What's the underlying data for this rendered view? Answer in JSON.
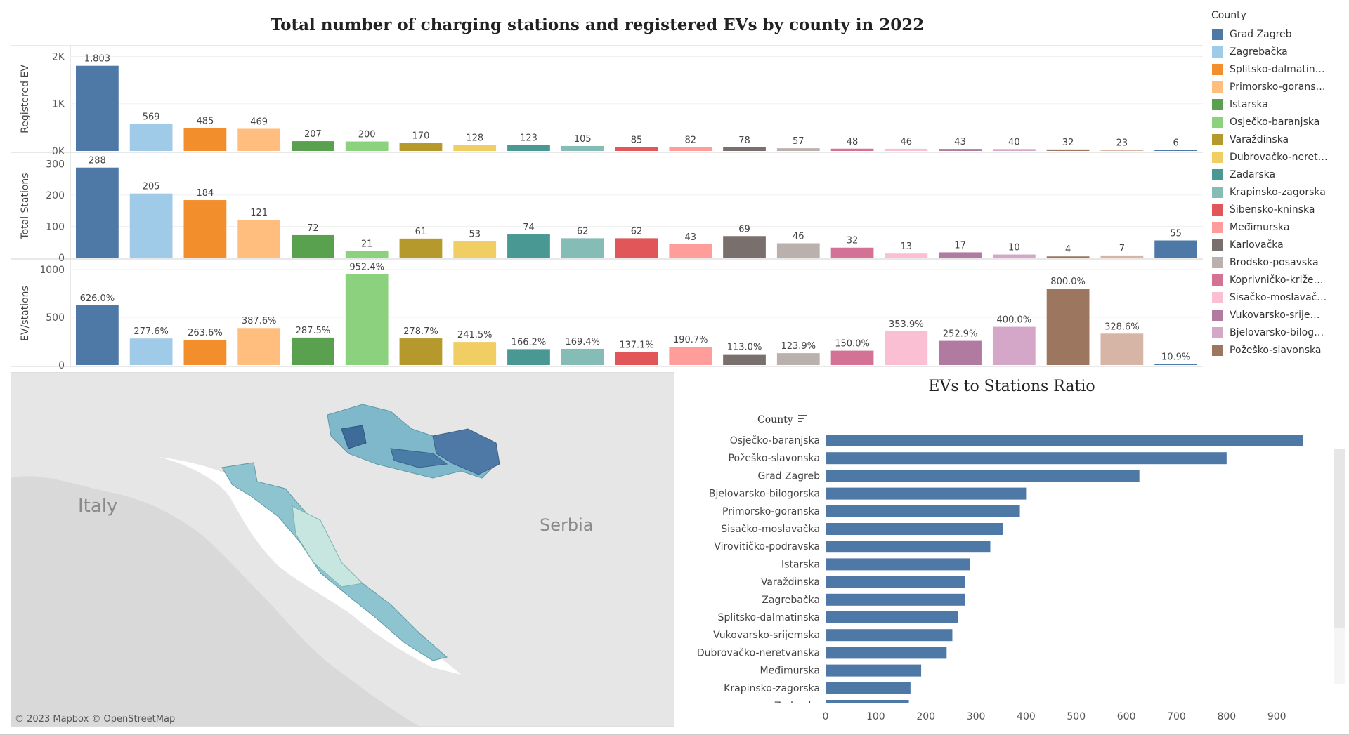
{
  "dashboard": {
    "title": "Total number of charging stations and registered EVs by county in 2022"
  },
  "legend": {
    "title": "County",
    "items": [
      {
        "label": "Grad Zagreb",
        "color": "#4e79a7"
      },
      {
        "label": "Zagrebačka",
        "color": "#a0cbe8"
      },
      {
        "label": "Splitsko-dalmatin…",
        "color": "#f28e2b"
      },
      {
        "label": "Primorsko-gorans…",
        "color": "#ffbe7d"
      },
      {
        "label": "Istarska",
        "color": "#59a14f"
      },
      {
        "label": "Osječko-baranjska",
        "color": "#8cd17d"
      },
      {
        "label": "Varaždinska",
        "color": "#b6992d"
      },
      {
        "label": "Dubrovačko-neret…",
        "color": "#f1ce63"
      },
      {
        "label": "Zadarska",
        "color": "#499894"
      },
      {
        "label": "Krapinsko-zagorska",
        "color": "#86bcb6"
      },
      {
        "label": "Šibensko-kninska",
        "color": "#e15759"
      },
      {
        "label": "Međimurska",
        "color": "#ff9d9a"
      },
      {
        "label": "Karlovačka",
        "color": "#79706e"
      },
      {
        "label": "Brodsko-posavska",
        "color": "#bab0ac"
      },
      {
        "label": "Koprivničko-križe…",
        "color": "#d37295"
      },
      {
        "label": "Sisačko-moslavač…",
        "color": "#fabfd2"
      },
      {
        "label": "Vukovarsko-srije…",
        "color": "#b07aa1"
      },
      {
        "label": "Bjelovarsko-bilog…",
        "color": "#d4a6c8"
      },
      {
        "label": "Požeško-slavonska",
        "color": "#9d7660"
      }
    ]
  },
  "map": {
    "country_labels": [
      "Italy",
      "Serbia"
    ],
    "attribution": "© 2023 Mapbox  © OpenStreetMap"
  },
  "chart_data": [
    {
      "type": "bar",
      "ylabel": "Registered EV",
      "yticks": [
        "2K",
        "1K",
        "0K"
      ],
      "ylim": [
        0,
        2200
      ],
      "bar_colors": [
        "#4e79a7",
        "#a0cbe8",
        "#f28e2b",
        "#ffbe7d",
        "#59a14f",
        "#8cd17d",
        "#b6992d",
        "#f1ce63",
        "#499894",
        "#86bcb6",
        "#e15759",
        "#ff9d9a",
        "#79706e",
        "#bab0ac",
        "#d37295",
        "#fabfd2",
        "#b07aa1",
        "#d4a6c8",
        "#9d7660",
        "#d7b5a6",
        "#4e79a7"
      ],
      "values": [
        1803,
        569,
        485,
        469,
        207,
        200,
        170,
        128,
        123,
        105,
        85,
        82,
        78,
        57,
        48,
        46,
        43,
        40,
        32,
        23,
        6
      ],
      "labels": [
        "1,803",
        "569",
        "485",
        "469",
        "207",
        "200",
        "170",
        "128",
        "123",
        "105",
        "85",
        "82",
        "78",
        "57",
        "48",
        "46",
        "43",
        "40",
        "32",
        "23",
        "6"
      ]
    },
    {
      "type": "bar",
      "ylabel": "Total Stations",
      "yticks": [
        "300",
        "200",
        "100",
        "0"
      ],
      "ylim": [
        0,
        330
      ],
      "bar_colors": [
        "#4e79a7",
        "#a0cbe8",
        "#f28e2b",
        "#ffbe7d",
        "#59a14f",
        "#8cd17d",
        "#b6992d",
        "#f1ce63",
        "#499894",
        "#86bcb6",
        "#e15759",
        "#ff9d9a",
        "#79706e",
        "#bab0ac",
        "#d37295",
        "#fabfd2",
        "#b07aa1",
        "#d4a6c8",
        "#9d7660",
        "#d7b5a6",
        "#4e79a7"
      ],
      "values": [
        288,
        205,
        184,
        121,
        72,
        21,
        61,
        53,
        74,
        62,
        62,
        43,
        69,
        46,
        32,
        13,
        17,
        10,
        4,
        7,
        55
      ],
      "labels": [
        "288",
        "205",
        "184",
        "121",
        "72",
        "21",
        "61",
        "53",
        "74",
        "62",
        "62",
        "43",
        "69",
        "46",
        "32",
        "13",
        "17",
        "10",
        "4",
        "7",
        "55"
      ]
    },
    {
      "type": "bar",
      "ylabel": "EV/stations",
      "yticks": [
        "1000",
        "500",
        "0"
      ],
      "ylim": [
        0,
        1080
      ],
      "bar_colors": [
        "#4e79a7",
        "#a0cbe8",
        "#f28e2b",
        "#ffbe7d",
        "#59a14f",
        "#8cd17d",
        "#b6992d",
        "#f1ce63",
        "#499894",
        "#86bcb6",
        "#e15759",
        "#ff9d9a",
        "#79706e",
        "#bab0ac",
        "#d37295",
        "#fabfd2",
        "#b07aa1",
        "#d4a6c8",
        "#9d7660",
        "#d7b5a6",
        "#4e79a7"
      ],
      "values": [
        626.0,
        277.6,
        263.6,
        387.6,
        287.5,
        952.4,
        278.7,
        241.5,
        166.2,
        169.4,
        137.1,
        190.7,
        113.0,
        123.9,
        150.0,
        353.9,
        252.9,
        400.0,
        800.0,
        328.6,
        10.9
      ],
      "labels": [
        "626.0%",
        "277.6%",
        "263.6%",
        "387.6%",
        "287.5%",
        "952.4%",
        "278.7%",
        "241.5%",
        "166.2%",
        "169.4%",
        "137.1%",
        "190.7%",
        "113.0%",
        "123.9%",
        "150.0%",
        "353.9%",
        "252.9%",
        "400.0%",
        "800.0%",
        "328.6%",
        "10.9%"
      ]
    },
    {
      "type": "bar",
      "orientation": "horizontal",
      "title": "EVs to Stations Ratio",
      "ylabel": "County",
      "color": "#4e79a7",
      "categories": [
        "Osječko-baranjska",
        "Požeško-slavonska",
        "Grad Zagreb",
        "Bjelovarsko-bilogorska",
        "Primorsko-goranska",
        "Sisačko-moslavačka",
        "Virovitičko-podravska",
        "Istarska",
        "Varaždinska",
        "Zagrebačka",
        "Splitsko-dalmatinska",
        "Vukovarsko-srijemska",
        "Dubrovačko-neretvanska",
        "Međimurska",
        "Krapinsko-zagorska",
        "Zadarska"
      ],
      "values": [
        952.4,
        800.0,
        626.0,
        400.0,
        387.6,
        353.9,
        328.6,
        287.5,
        278.7,
        277.6,
        263.6,
        252.9,
        241.5,
        190.7,
        169.4,
        166.2
      ],
      "xticks": [
        0,
        100,
        200,
        300,
        400,
        500,
        600,
        700,
        800,
        900
      ],
      "xlim": [
        0,
        960
      ]
    }
  ]
}
